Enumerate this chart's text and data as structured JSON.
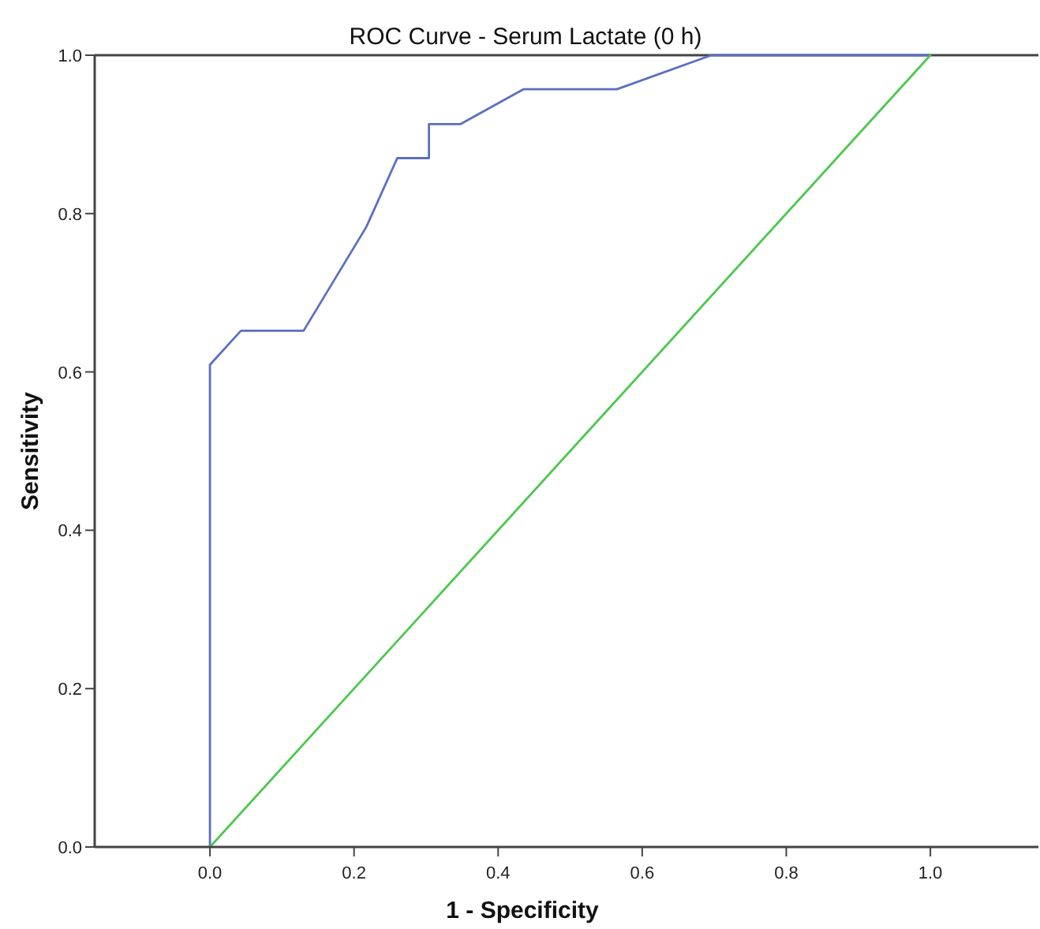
{
  "chart_data": {
    "type": "line",
    "title": "ROC Curve - Serum Lactate (0 h)",
    "xlabel": "1 - Specificity",
    "ylabel": "Sensitivity",
    "xlim": [
      -0.16,
      1.15
    ],
    "ylim": [
      0,
      1
    ],
    "xticks": [
      {
        "value": 0,
        "label": "0.0"
      },
      0.2,
      0.4,
      0.6,
      0.8,
      {
        "value": 1,
        "label": "1.0"
      }
    ],
    "yticks": [
      {
        "value": 0,
        "label": "0.0"
      },
      0.2,
      0.4,
      0.6,
      0.8,
      {
        "value": 1,
        "label": "1.0"
      }
    ],
    "grid": false,
    "marker": "none",
    "line_style": "solid",
    "series": [
      {
        "color": "#5b6fc2",
        "x": [
          0,
          0,
          0.043,
          0.13,
          0.217,
          0.26,
          0.304,
          0.304,
          0.348,
          0.435,
          0.565,
          0.696,
          1
        ],
        "values": [
          0,
          0.609,
          0.652,
          0.652,
          0.783,
          0.87,
          0.87,
          0.913,
          0.913,
          0.957,
          0.957,
          1,
          1
        ]
      },
      {
        "color": "#4cc84c",
        "x": [
          0,
          1
        ],
        "values": [
          0,
          1
        ]
      }
    ]
  }
}
